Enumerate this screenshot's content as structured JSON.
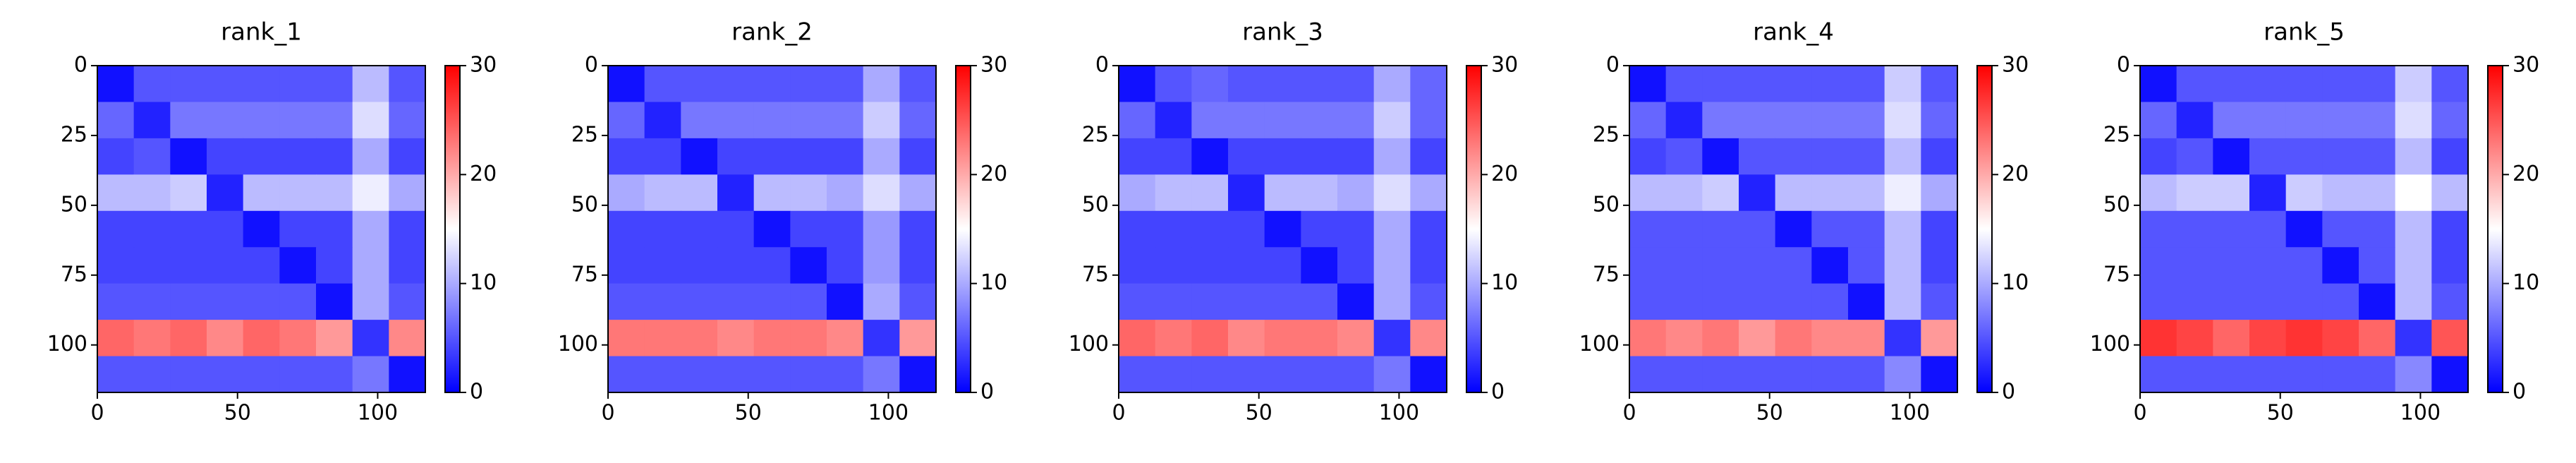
{
  "chart_data": [
    {
      "type": "heatmap",
      "title": "rank_1",
      "xbins": [
        0,
        13,
        26,
        39,
        52,
        65,
        78,
        91,
        104,
        117
      ],
      "ybins": [
        0,
        13,
        26,
        39,
        52,
        65,
        78,
        91,
        104,
        117
      ],
      "z": [
        [
          1,
          5,
          5,
          5,
          5,
          5,
          5,
          11,
          5
        ],
        [
          6,
          2,
          7,
          7,
          7,
          7,
          7,
          13,
          6
        ],
        [
          4,
          5,
          1,
          4,
          4,
          4,
          4,
          10,
          4
        ],
        [
          11,
          11,
          12,
          2,
          11,
          11,
          11,
          14,
          10
        ],
        [
          4,
          4,
          4,
          4,
          1,
          4,
          4,
          10,
          4
        ],
        [
          4,
          4,
          4,
          4,
          4,
          1,
          4,
          10,
          4
        ],
        [
          5,
          5,
          5,
          5,
          5,
          5,
          1,
          10,
          5
        ],
        [
          24,
          23,
          24,
          22,
          24,
          23,
          21,
          3,
          22
        ],
        [
          5,
          5,
          5,
          5,
          5,
          5,
          5,
          7,
          1
        ]
      ],
      "xlim": [
        0,
        117
      ],
      "ylim": [
        117,
        0
      ],
      "xticks": [
        0,
        50,
        100
      ],
      "yticks": [
        0,
        25,
        50,
        75,
        100
      ],
      "clim": [
        0,
        30
      ],
      "cticks": [
        0,
        10,
        20,
        30
      ],
      "colors": [
        "#0000ff",
        "#ffffff",
        "#ff0000"
      ]
    },
    {
      "type": "heatmap",
      "title": "rank_2",
      "xbins": [
        0,
        13,
        26,
        39,
        52,
        65,
        78,
        91,
        104,
        117
      ],
      "ybins": [
        0,
        13,
        26,
        39,
        52,
        65,
        78,
        91,
        104,
        117
      ],
      "z": [
        [
          1,
          5,
          5,
          5,
          5,
          5,
          5,
          10,
          5
        ],
        [
          6,
          2,
          7,
          7,
          7,
          7,
          7,
          12,
          6
        ],
        [
          4,
          4,
          1,
          4,
          4,
          4,
          4,
          10,
          4
        ],
        [
          10,
          11,
          11,
          2,
          11,
          11,
          10,
          13,
          10
        ],
        [
          4,
          4,
          4,
          4,
          1,
          4,
          4,
          9,
          4
        ],
        [
          4,
          4,
          4,
          4,
          4,
          1,
          4,
          9,
          4
        ],
        [
          5,
          5,
          5,
          5,
          5,
          5,
          1,
          10,
          5
        ],
        [
          23,
          23,
          23,
          22,
          23,
          23,
          22,
          3,
          21
        ],
        [
          5,
          5,
          5,
          5,
          5,
          5,
          5,
          7,
          1
        ]
      ],
      "xlim": [
        0,
        117
      ],
      "ylim": [
        117,
        0
      ],
      "xticks": [
        0,
        50,
        100
      ],
      "yticks": [
        0,
        25,
        50,
        75,
        100
      ],
      "clim": [
        0,
        30
      ],
      "cticks": [
        0,
        10,
        20,
        30
      ],
      "colors": [
        "#0000ff",
        "#ffffff",
        "#ff0000"
      ]
    },
    {
      "type": "heatmap",
      "title": "rank_3",
      "xbins": [
        0,
        13,
        26,
        39,
        52,
        65,
        78,
        91,
        104,
        117
      ],
      "ybins": [
        0,
        13,
        26,
        39,
        52,
        65,
        78,
        91,
        104,
        117
      ],
      "z": [
        [
          1,
          5,
          6,
          5,
          5,
          5,
          5,
          10,
          6
        ],
        [
          6,
          2,
          7,
          7,
          7,
          7,
          7,
          12,
          6
        ],
        [
          4,
          4,
          1,
          4,
          4,
          4,
          4,
          10,
          4
        ],
        [
          10,
          11,
          11,
          2,
          11,
          11,
          10,
          13,
          10
        ],
        [
          4,
          4,
          4,
          4,
          1,
          4,
          4,
          10,
          4
        ],
        [
          4,
          4,
          4,
          4,
          4,
          1,
          4,
          10,
          4
        ],
        [
          5,
          5,
          5,
          5,
          5,
          5,
          1,
          10,
          5
        ],
        [
          24,
          23,
          24,
          22,
          23,
          23,
          22,
          3,
          22
        ],
        [
          5,
          5,
          5,
          5,
          5,
          5,
          5,
          7,
          1
        ]
      ],
      "xlim": [
        0,
        117
      ],
      "ylim": [
        117,
        0
      ],
      "xticks": [
        0,
        50,
        100
      ],
      "yticks": [
        0,
        25,
        50,
        75,
        100
      ],
      "clim": [
        0,
        30
      ],
      "cticks": [
        0,
        10,
        20,
        30
      ],
      "colors": [
        "#0000ff",
        "#ffffff",
        "#ff0000"
      ]
    },
    {
      "type": "heatmap",
      "title": "rank_4",
      "xbins": [
        0,
        13,
        26,
        39,
        52,
        65,
        78,
        91,
        104,
        117
      ],
      "ybins": [
        0,
        13,
        26,
        39,
        52,
        65,
        78,
        91,
        104,
        117
      ],
      "z": [
        [
          1,
          5,
          5,
          5,
          5,
          5,
          5,
          12,
          5
        ],
        [
          6,
          2,
          7,
          7,
          7,
          7,
          7,
          13,
          6
        ],
        [
          4,
          5,
          1,
          5,
          5,
          5,
          5,
          11,
          4
        ],
        [
          11,
          11,
          12,
          2,
          11,
          11,
          11,
          14,
          10
        ],
        [
          5,
          5,
          5,
          5,
          1,
          5,
          5,
          11,
          4
        ],
        [
          5,
          5,
          5,
          5,
          5,
          1,
          5,
          11,
          4
        ],
        [
          5,
          5,
          5,
          5,
          5,
          5,
          1,
          11,
          5
        ],
        [
          23,
          22,
          23,
          21,
          23,
          22,
          22,
          3,
          21
        ],
        [
          5,
          5,
          5,
          5,
          5,
          5,
          5,
          8,
          1
        ]
      ],
      "xlim": [
        0,
        117
      ],
      "ylim": [
        117,
        0
      ],
      "xticks": [
        0,
        50,
        100
      ],
      "yticks": [
        0,
        25,
        50,
        75,
        100
      ],
      "clim": [
        0,
        30
      ],
      "cticks": [
        0,
        10,
        20,
        30
      ],
      "colors": [
        "#0000ff",
        "#ffffff",
        "#ff0000"
      ]
    },
    {
      "type": "heatmap",
      "title": "rank_5",
      "xbins": [
        0,
        13,
        26,
        39,
        52,
        65,
        78,
        91,
        104,
        117
      ],
      "ybins": [
        0,
        13,
        26,
        39,
        52,
        65,
        78,
        91,
        104,
        117
      ],
      "z": [
        [
          1,
          5,
          5,
          5,
          5,
          5,
          5,
          12,
          5
        ],
        [
          6,
          2,
          7,
          7,
          7,
          7,
          7,
          13,
          6
        ],
        [
          4,
          5,
          1,
          5,
          5,
          5,
          5,
          11,
          4
        ],
        [
          11,
          12,
          12,
          2,
          12,
          11,
          11,
          15,
          11
        ],
        [
          5,
          5,
          5,
          5,
          1,
          5,
          5,
          11,
          4
        ],
        [
          5,
          5,
          5,
          5,
          5,
          1,
          5,
          11,
          4
        ],
        [
          5,
          5,
          5,
          5,
          5,
          5,
          1,
          11,
          5
        ],
        [
          27,
          26,
          24,
          26,
          27,
          26,
          24,
          3,
          25
        ],
        [
          5,
          5,
          5,
          5,
          5,
          5,
          5,
          8,
          1
        ]
      ],
      "xlim": [
        0,
        117
      ],
      "ylim": [
        117,
        0
      ],
      "xticks": [
        0,
        50,
        100
      ],
      "yticks": [
        0,
        25,
        50,
        75,
        100
      ],
      "clim": [
        0,
        30
      ],
      "cticks": [
        0,
        10,
        20,
        30
      ],
      "colors": [
        "#0000ff",
        "#ffffff",
        "#ff0000"
      ]
    }
  ]
}
